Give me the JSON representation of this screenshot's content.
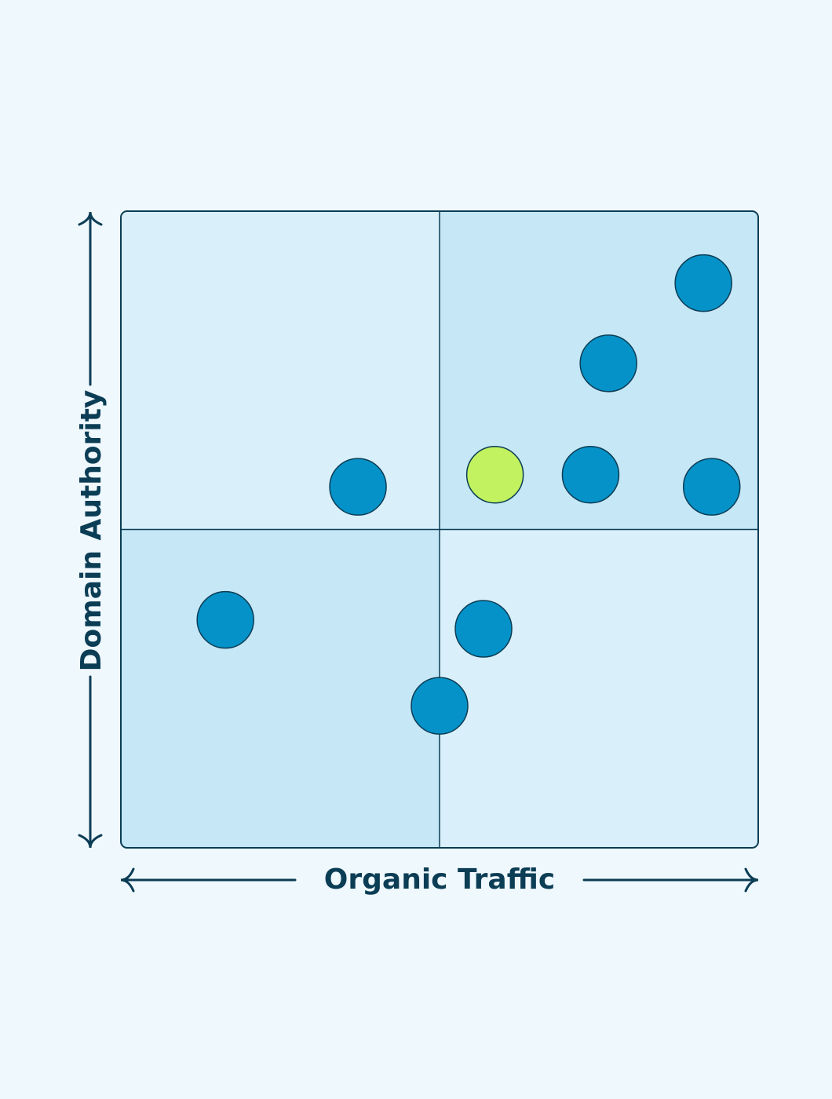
{
  "chart_data": {
    "type": "scatter",
    "title": "",
    "xlabel": "Organic Traffic",
    "ylabel": "Domain Authority",
    "xlim": [
      0,
      100
    ],
    "ylim": [
      0,
      100
    ],
    "grid": false,
    "quadrant_split": {
      "x": 50,
      "y": 50
    },
    "series": [
      {
        "points": [
          {
            "x": 91.4,
            "y": 88.7
          },
          {
            "x": 76.5,
            "y": 76.1
          },
          {
            "x": 73.7,
            "y": 58.6
          },
          {
            "x": 92.7,
            "y": 56.7
          },
          {
            "x": 37.2,
            "y": 56.7
          },
          {
            "x": 16.4,
            "y": 35.8
          },
          {
            "x": 56.9,
            "y": 34.4
          },
          {
            "x": 50.0,
            "y": 22.3
          }
        ]
      },
      {
        "points": [
          {
            "x": 58.7,
            "y": 58.6
          }
        ]
      }
    ]
  },
  "colors": {
    "background": "#eff8fd",
    "quadrant_light": "#d9f0fa",
    "quadrant_dark": "#c5e7f6",
    "line": "#0b3d55",
    "text": "#0b3d55",
    "point": "#0592c8",
    "highlight_point": "#c2f25f"
  }
}
